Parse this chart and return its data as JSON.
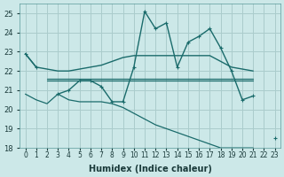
{
  "background_color": "#cce8e8",
  "grid_color": "#aacccc",
  "line_color": "#1a6b6b",
  "xlabel": "Humidex (Indice chaleur)",
  "x_values": [
    0,
    1,
    2,
    3,
    4,
    5,
    6,
    7,
    8,
    9,
    10,
    11,
    12,
    13,
    14,
    15,
    16,
    17,
    18,
    19,
    20,
    21,
    22,
    23
  ],
  "spiky": [
    22.9,
    22.2,
    null,
    20.8,
    21.0,
    21.5,
    21.5,
    21.2,
    20.4,
    20.4,
    22.2,
    25.1,
    24.2,
    24.5,
    22.2,
    23.5,
    23.8,
    24.2,
    23.2,
    22.0,
    20.5,
    20.7,
    null,
    18.5
  ],
  "upper_arc": [
    22.9,
    22.2,
    22.1,
    22.0,
    22.0,
    22.1,
    22.2,
    22.3,
    22.5,
    22.7,
    22.8,
    22.8,
    22.8,
    22.8,
    22.8,
    22.8,
    22.8,
    22.8,
    22.5,
    22.2,
    22.1,
    22.0,
    null,
    null
  ],
  "flat_high": [
    null,
    null,
    21.6,
    21.6,
    21.6,
    21.6,
    21.6,
    21.6,
    21.6,
    21.6,
    21.6,
    21.6,
    21.6,
    21.6,
    21.6,
    21.6,
    21.6,
    21.6,
    21.6,
    21.6,
    21.6,
    21.6,
    null,
    null
  ],
  "flat_low": [
    null,
    null,
    21.5,
    21.5,
    21.5,
    21.5,
    21.5,
    21.5,
    21.5,
    21.5,
    21.5,
    21.5,
    21.5,
    21.5,
    21.5,
    21.5,
    21.5,
    21.5,
    21.5,
    21.5,
    21.5,
    21.5,
    null,
    null
  ],
  "lower_slope": [
    20.8,
    20.5,
    20.3,
    20.8,
    20.5,
    20.4,
    20.4,
    20.4,
    20.3,
    20.1,
    19.8,
    19.5,
    19.2,
    19.0,
    18.8,
    18.6,
    18.4,
    18.2,
    18.0,
    18.0,
    18.0,
    18.0,
    null,
    18.5
  ],
  "ylim": [
    18,
    25.5
  ],
  "yticks": [
    18,
    19,
    20,
    21,
    22,
    23,
    24,
    25
  ],
  "xlim": [
    -0.5,
    23.5
  ]
}
